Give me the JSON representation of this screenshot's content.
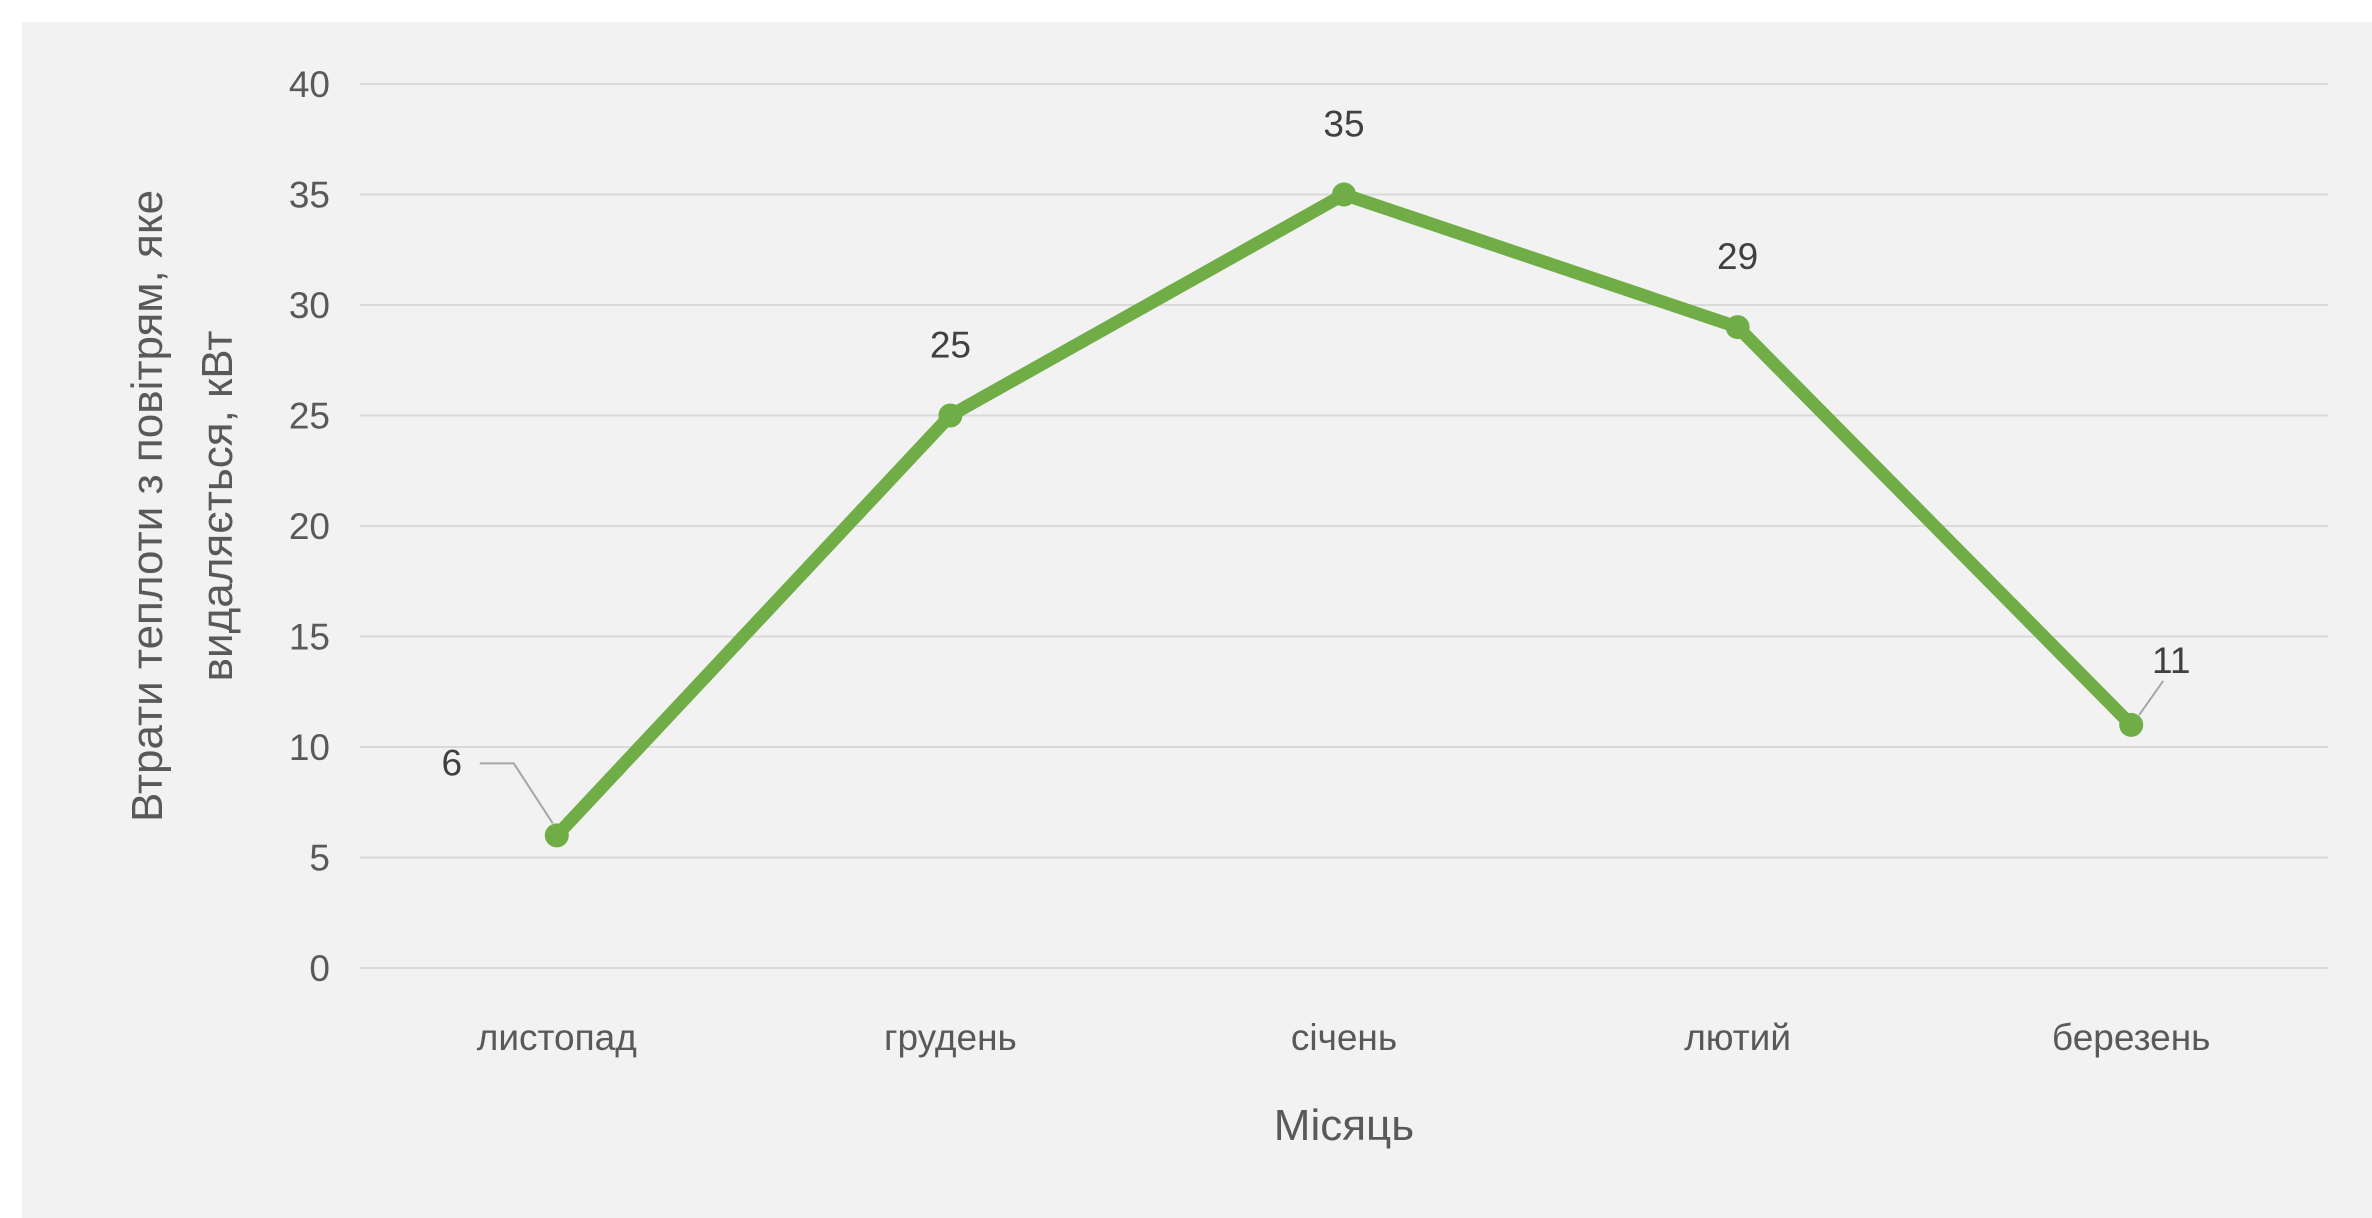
{
  "chart_data": {
    "type": "line",
    "categories": [
      "листопад",
      "грудень",
      "січень",
      "лютий",
      "березень"
    ],
    "series": [
      {
        "values": [
          6,
          25,
          35,
          29,
          11
        ],
        "color": "#70ad47"
      }
    ],
    "data_labels": [
      "6",
      "25",
      "35",
      "29",
      "11"
    ],
    "xlabel": "Місяць",
    "ylabel_lines": [
      "Втрати теплоти з повітрям, яке",
      "видаляється, кВт"
    ],
    "ylim": [
      0,
      40
    ],
    "yticks": [
      0,
      5,
      10,
      15,
      20,
      25,
      30,
      35,
      40
    ],
    "grid": true,
    "legend": "none",
    "colors": {
      "line": "#70ad47",
      "grid": "#d9d9d9",
      "background": "#f2f2f2",
      "text": "#595959"
    }
  }
}
